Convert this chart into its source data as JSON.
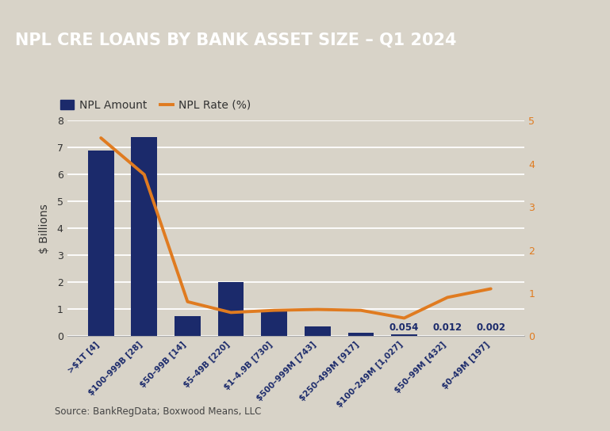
{
  "title": "NPL CRE LOANS BY BANK ASSET SIZE – Q1 2024",
  "title_bg_color": "#636363",
  "title_text_color": "#ffffff",
  "bg_color": "#d8d3c8",
  "plot_bg_color": "#d8d3c8",
  "categories": [
    ">$1T [4]",
    "$100–999B [28]",
    "$50–99B [14]",
    "$5–49B [220]",
    "$1–4.9B [730]",
    "$500–999M [743]",
    "$250–499M [917]",
    "$100–249M [1,027]",
    "$50–99M [432]",
    "$0–49M [197]"
  ],
  "npl_amount": [
    6.9,
    7.4,
    0.75,
    2.0,
    0.95,
    0.35,
    0.13,
    0.054,
    0.012,
    0.002
  ],
  "npl_rate": [
    4.6,
    3.75,
    0.8,
    0.55,
    0.6,
    0.62,
    0.6,
    0.42,
    0.9,
    1.1
  ],
  "bar_color": "#1b2a6b",
  "line_color": "#e07b20",
  "ylabel_left": "$ Billions",
  "ylim_left": [
    0,
    8
  ],
  "ylim_right": [
    0,
    5
  ],
  "yticks_left": [
    0,
    1,
    2,
    3,
    4,
    5,
    6,
    7,
    8
  ],
  "yticks_right": [
    0,
    1,
    2,
    3,
    4,
    5
  ],
  "source_text": "Source: BankRegData; Boxwood Means, LLC",
  "legend_bar_label": "NPL Amount",
  "legend_line_label": "NPL Rate (%)",
  "annotation_indices": [
    7,
    8,
    9
  ],
  "annotation_values": [
    "0.054",
    "0.012",
    "0.002"
  ],
  "annotation_color": "#1b2a6b",
  "grid_color": "#ffffff",
  "tick_label_color": "#1b2a6b",
  "right_tick_color": "#e07b20",
  "left_tick_color": "#333333",
  "axis_label_color": "#333333"
}
